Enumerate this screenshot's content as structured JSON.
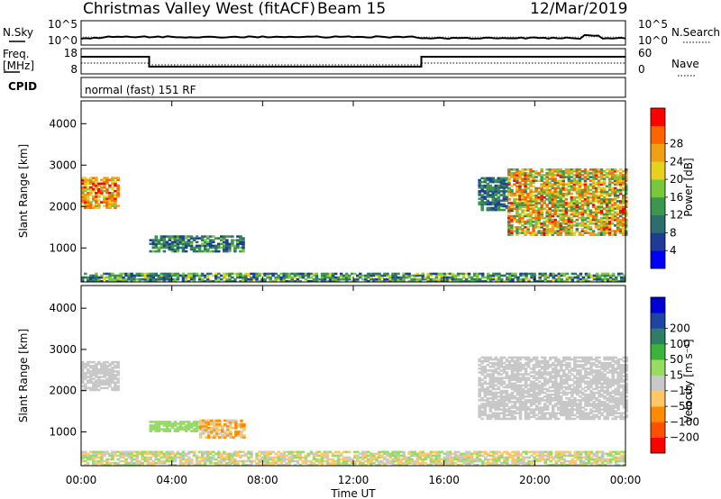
{
  "header": {
    "station": "Christmas Valley West (fitACF)",
    "beam": "Beam 15",
    "date": "12/Mar/2019"
  },
  "noise_panel": {
    "left_label": "N.Sky",
    "right_label": "N.Search",
    "left_ticks": [
      "10^5",
      "10^0"
    ],
    "right_ticks": [
      "10^5",
      "10^0"
    ]
  },
  "freq_panel": {
    "left_label_line1": "Freq.",
    "left_label_line2": "[MHz]",
    "right_label": "Nave",
    "left_ticks": [
      "18",
      "8"
    ],
    "right_ticks": [
      "60",
      "0"
    ]
  },
  "cpid": {
    "label": "CPID",
    "value": "normal (fast) 151 RF"
  },
  "colors": {
    "power_scale": [
      "#0000ff",
      "#1e3c96",
      "#2c6e6e",
      "#3c9650",
      "#78c83c",
      "#e6d21e",
      "#f0a014",
      "#ff6400",
      "#ff0000"
    ],
    "velocity_scale": [
      "#ff0000",
      "#ff5000",
      "#ff8c00",
      "#ffc864",
      "#c8c8c8",
      "#96dc64",
      "#3cb43c",
      "#2e7d64",
      "#1e46a0",
      "#0000d2"
    ],
    "ground_scatter": "#bebebe"
  },
  "chart_data": [
    {
      "type": "heatmap",
      "title": "",
      "xlabel": "Time UT",
      "ylabel": "Slant Range [km]",
      "x_ticks": [
        "00:00",
        "04:00",
        "08:00",
        "12:00",
        "16:00",
        "20:00",
        "00:00"
      ],
      "xlim_hours": [
        0,
        24
      ],
      "ylim": [
        180,
        4550
      ],
      "y_ticks": [
        1000,
        2000,
        3000,
        4000
      ],
      "colorbar": {
        "label": "Power [dB]",
        "ticks": [
          4,
          8,
          12,
          16,
          20,
          24,
          28
        ],
        "range": [
          0,
          32
        ]
      },
      "regions": [
        {
          "t_start": 0.0,
          "t_end": 1.6,
          "r_min": 1950,
          "r_max": 2700,
          "value_range": [
            16,
            30
          ]
        },
        {
          "t_start": 3.0,
          "t_end": 7.2,
          "r_min": 900,
          "r_max": 1300,
          "value_range": [
            4,
            16
          ]
        },
        {
          "t_start": 17.5,
          "t_end": 18.8,
          "r_min": 1900,
          "r_max": 2700,
          "value_range": [
            4,
            14
          ]
        },
        {
          "t_start": 18.8,
          "t_end": 24.0,
          "r_min": 1300,
          "r_max": 2900,
          "value_range": [
            10,
            30
          ]
        },
        {
          "t_start": 0.0,
          "t_end": 24.0,
          "r_min": 180,
          "r_max": 400,
          "value_range": [
            4,
            20
          ]
        }
      ]
    },
    {
      "type": "heatmap",
      "title": "",
      "xlabel": "Time UT",
      "ylabel": "Slant Range [km]",
      "x_ticks": [
        "00:00",
        "04:00",
        "08:00",
        "12:00",
        "16:00",
        "20:00",
        "00:00"
      ],
      "xlim_hours": [
        0,
        24
      ],
      "ylim": [
        180,
        4550
      ],
      "y_ticks": [
        1000,
        2000,
        3000,
        4000
      ],
      "colorbar": {
        "label": "Velocity [m s⁻¹]",
        "ticks": [
          -200,
          -100,
          -50,
          -15,
          15,
          50,
          100,
          200
        ],
        "tick_labels": [
          "−200",
          "−100",
          "−50",
          "−15",
          "15",
          "50",
          "100",
          "200"
        ]
      },
      "regions": [
        {
          "t_start": 0.0,
          "t_end": 1.6,
          "r_min": 2000,
          "r_max": 2700,
          "value_range": [
            -15,
            15
          ]
        },
        {
          "t_start": 3.0,
          "t_end": 5.2,
          "r_min": 1000,
          "r_max": 1250,
          "value_range": [
            15,
            50
          ]
        },
        {
          "t_start": 5.2,
          "t_end": 7.2,
          "r_min": 850,
          "r_max": 1300,
          "value_range": [
            -100,
            15
          ]
        },
        {
          "t_start": 17.5,
          "t_end": 24.0,
          "r_min": 1300,
          "r_max": 2800,
          "value_range": [
            -15,
            15
          ]
        },
        {
          "t_start": 0.0,
          "t_end": 24.0,
          "r_min": 180,
          "r_max": 500,
          "value_range": [
            -50,
            50
          ]
        }
      ]
    }
  ]
}
